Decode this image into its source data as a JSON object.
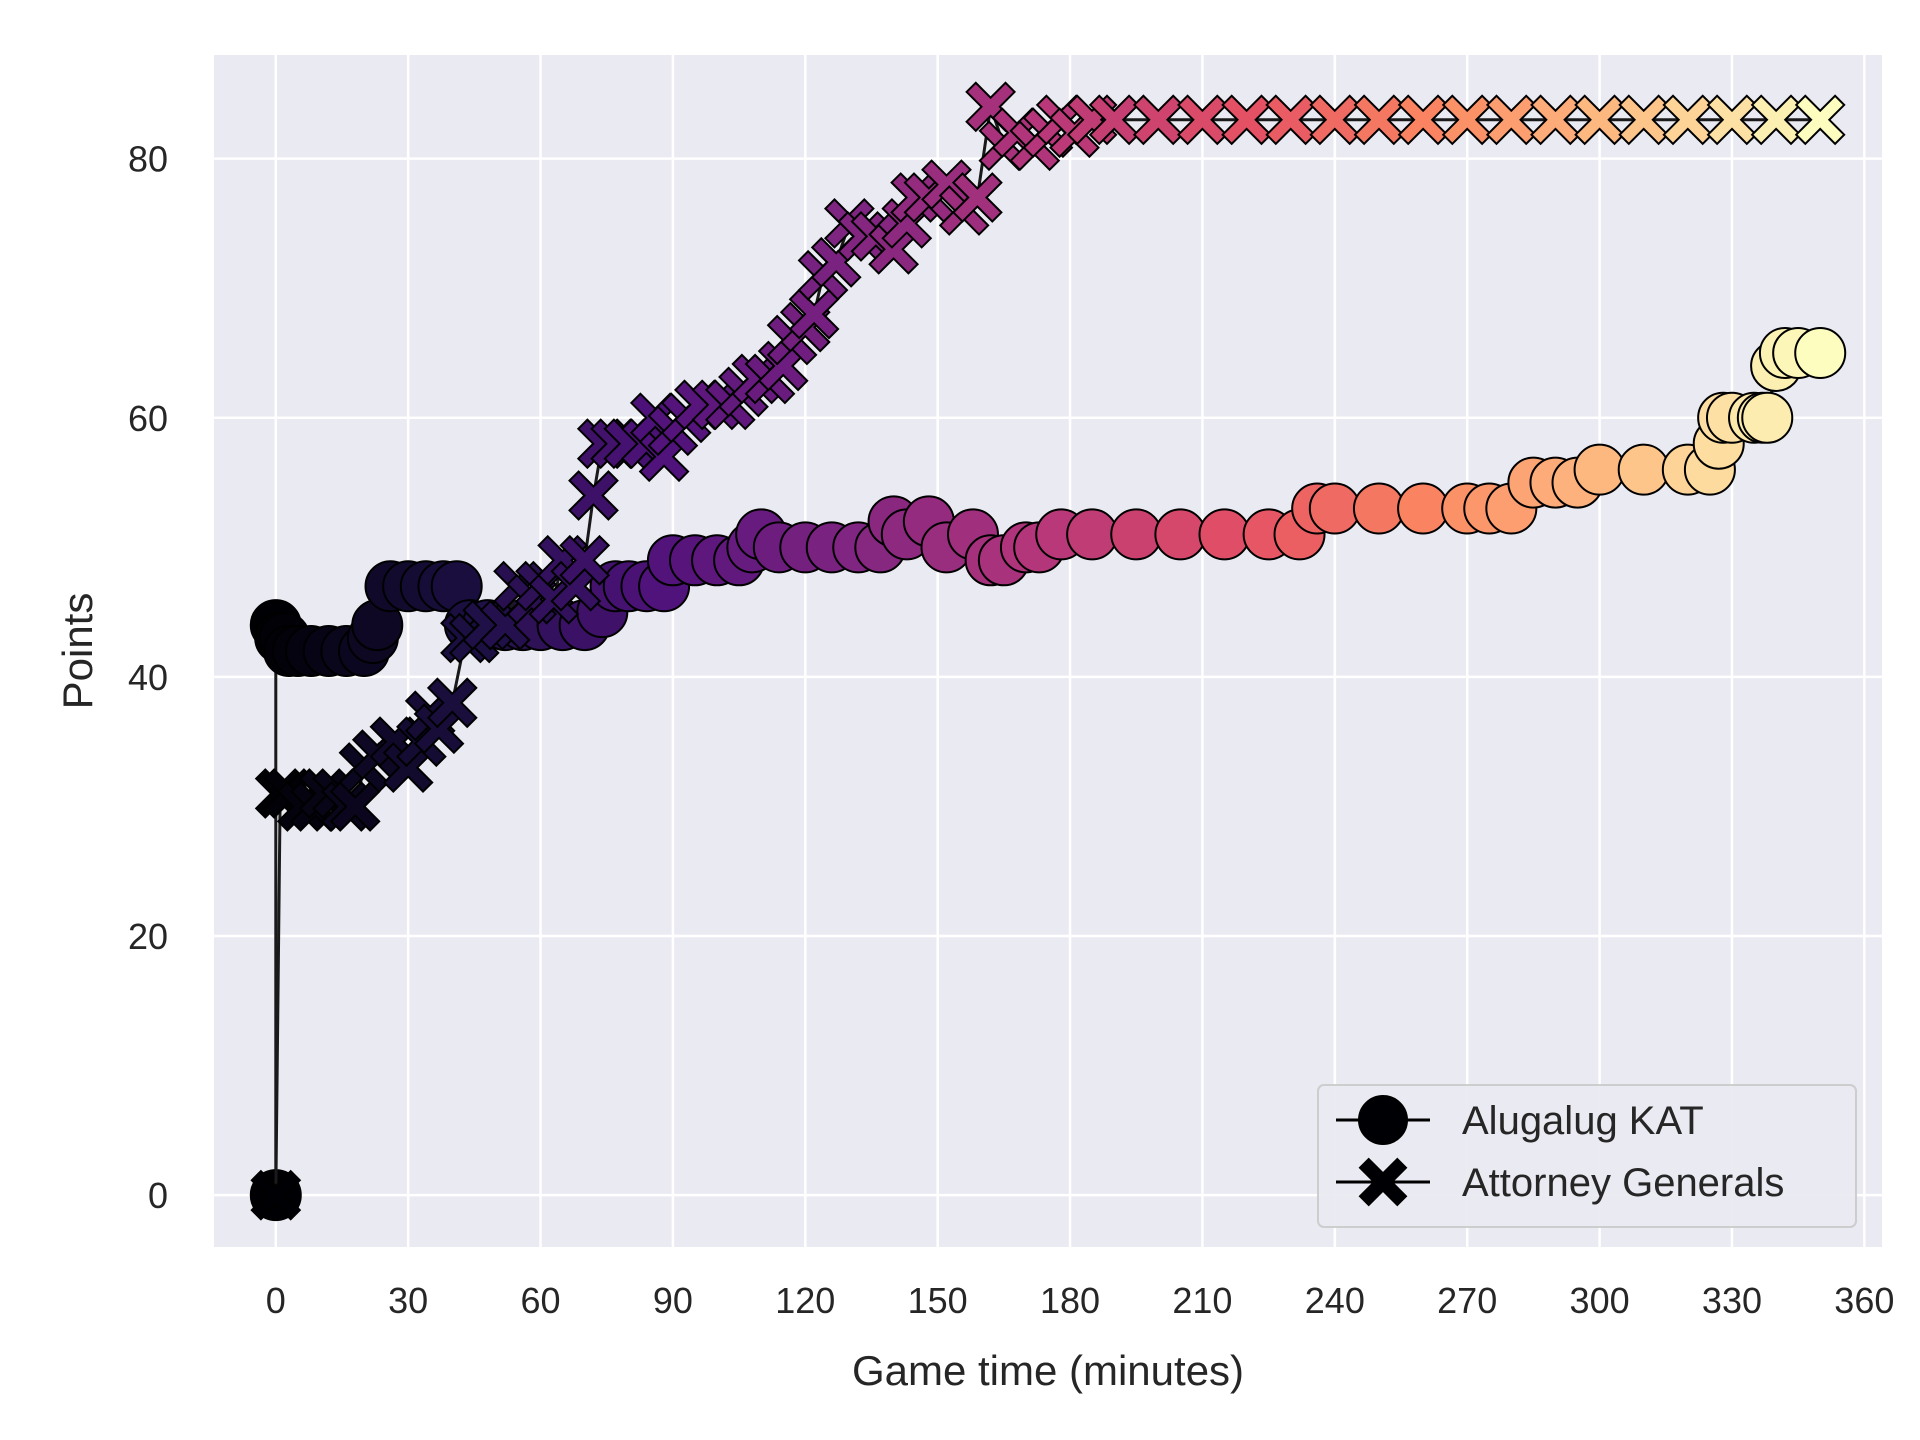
{
  "chart_data": {
    "type": "scatter",
    "title": "",
    "xlabel": "Game time (minutes)",
    "ylabel": "Points",
    "xlim": [
      -14,
      364
    ],
    "ylim": [
      -4,
      88
    ],
    "xticks": [
      0,
      30,
      60,
      90,
      120,
      150,
      180,
      210,
      240,
      270,
      300,
      330,
      360
    ],
    "yticks": [
      0,
      20,
      40,
      60,
      80
    ],
    "grid": true,
    "background": "#eaeaf2",
    "colormap": "magma",
    "legend_position": "lower-right",
    "series": [
      {
        "name": "Alugalug KAT",
        "marker": "circle",
        "x": [
          0,
          0,
          1,
          2,
          3,
          5,
          8,
          12,
          16,
          20,
          22,
          23,
          26,
          30,
          34,
          38,
          41,
          44,
          48,
          52,
          56,
          60,
          65,
          70,
          74,
          77,
          80,
          84,
          88,
          90,
          95,
          100,
          105,
          108,
          110,
          114,
          120,
          126,
          132,
          137,
          140,
          143,
          148,
          152,
          158,
          162,
          165,
          170,
          173,
          178,
          185,
          195,
          205,
          215,
          225,
          232,
          236,
          240,
          250,
          260,
          270,
          275,
          280,
          285,
          290,
          295,
          300,
          310,
          320,
          325,
          327,
          328,
          330,
          335,
          337,
          338,
          340,
          342,
          345,
          350
        ],
        "y": [
          0,
          44,
          43,
          43,
          42,
          42,
          42,
          42,
          42,
          42,
          43,
          44,
          47,
          47,
          47,
          47,
          47,
          44,
          44,
          44,
          44,
          44,
          44,
          44,
          45,
          47,
          47,
          47,
          47,
          49,
          49,
          49,
          49,
          50,
          51,
          50,
          50,
          50,
          50,
          50,
          52,
          51,
          52,
          50,
          51,
          49,
          49,
          50,
          50,
          51,
          51,
          51,
          51,
          51,
          51,
          51,
          53,
          53,
          53,
          53,
          53,
          53,
          53,
          55,
          55,
          55,
          56,
          56,
          56,
          56,
          58,
          60,
          60,
          60,
          60,
          60,
          64,
          65,
          65,
          65
        ]
      },
      {
        "name": "Attorney Generals",
        "marker": "x",
        "x": [
          0,
          1,
          3,
          6,
          9,
          11,
          14,
          16,
          18,
          20,
          23,
          27,
          30,
          33,
          35,
          37,
          40,
          43,
          45,
          48,
          52,
          55,
          58,
          60,
          63,
          65,
          68,
          70,
          72,
          74,
          77,
          80,
          84,
          86,
          88,
          90,
          93,
          96,
          100,
          103,
          106,
          109,
          112,
          115,
          117,
          120,
          122,
          124,
          127,
          130,
          133,
          136,
          140,
          143,
          145,
          148,
          152,
          156,
          159,
          162,
          165,
          168,
          172,
          175,
          178,
          181,
          185,
          190,
          200,
          210,
          220,
          230,
          240,
          250,
          260,
          270,
          280,
          290,
          300,
          310,
          320,
          330,
          340,
          350
        ],
        "y": [
          0,
          31,
          31,
          30,
          30,
          31,
          31,
          30,
          30,
          33,
          34,
          35,
          33,
          35,
          37,
          36,
          38,
          43,
          43,
          44,
          44,
          47,
          46,
          47,
          46,
          49,
          47,
          49,
          54,
          58,
          58,
          58,
          58,
          60,
          57,
          59,
          60,
          61,
          61,
          61,
          62,
          63,
          63,
          64,
          66,
          67,
          68,
          71,
          72,
          75,
          74,
          74,
          73,
          75,
          77,
          77,
          78,
          76,
          77,
          84,
          81,
          82,
          81,
          82,
          83,
          82,
          83,
          83,
          83,
          83,
          83,
          83,
          83,
          83,
          83,
          83,
          83,
          83,
          83,
          83,
          83,
          83,
          83,
          83
        ]
      }
    ]
  }
}
